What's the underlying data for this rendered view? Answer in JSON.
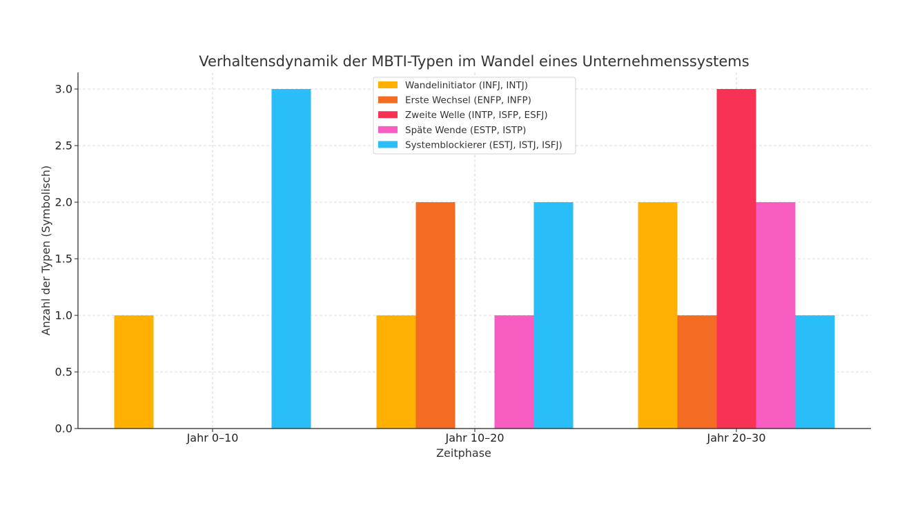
{
  "chart_data": {
    "type": "bar",
    "title": "Verhaltensdynamik der MBTI-Typen im Wandel eines Unternehmenssystems",
    "xlabel": "Zeitphase",
    "ylabel": "Anzahl der Typen (Symbolisch)",
    "ylim": [
      0,
      3.15
    ],
    "yticks": [
      0.0,
      0.5,
      1.0,
      1.5,
      2.0,
      2.5,
      3.0
    ],
    "ytick_labels": [
      "0.0",
      "0.5",
      "1.0",
      "1.5",
      "2.0",
      "2.5",
      "3.0"
    ],
    "grid": true,
    "legend_position": "top-center",
    "categories": [
      "Jahr 0–10",
      "Jahr 10–20",
      "Jahr 20–30"
    ],
    "series": [
      {
        "name": "Wandelinitiator (INFJ, INTJ)",
        "color": "#FFB000",
        "values": [
          1,
          1,
          2
        ]
      },
      {
        "name": "Erste Wechsel (ENFP, INFP)",
        "color": "#F46B23",
        "values": [
          0,
          2,
          1
        ]
      },
      {
        "name": "Zweite Welle (INTP, ISFP, ESFJ)",
        "color": "#F73254",
        "values": [
          0,
          0,
          3
        ]
      },
      {
        "name": "Späte Wende (ESTP, ISTP)",
        "color": "#F75CC0",
        "values": [
          0,
          1,
          2
        ]
      },
      {
        "name": "Systemblockierer (ESTJ, ISTJ, ISFJ)",
        "color": "#29BEF8",
        "values": [
          3,
          2,
          1
        ]
      }
    ]
  }
}
